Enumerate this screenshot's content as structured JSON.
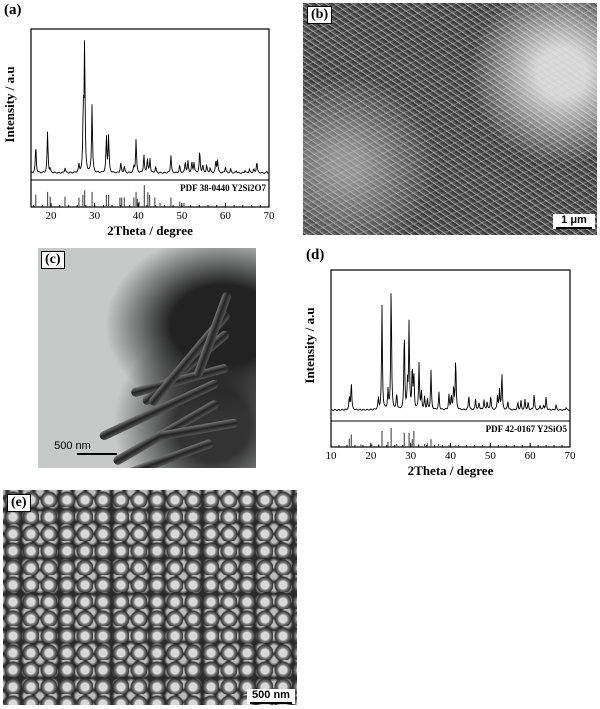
{
  "panels": {
    "a": {
      "label": "(a)"
    },
    "b": {
      "label": "(b)",
      "scale": "1 μm"
    },
    "c": {
      "label": "(c)",
      "scale": "500 nm"
    },
    "d": {
      "label": "(d)"
    },
    "e": {
      "label": "(e)",
      "scale": "500 nm"
    }
  },
  "chart_data": [
    {
      "panel": "a",
      "type": "line",
      "xlabel": "2Theta / degree",
      "ylabel": "Intensity / a.u",
      "xlim": [
        15.4,
        70
      ],
      "xticks": [
        20,
        30,
        40,
        50,
        60,
        70
      ],
      "reference_label": "PDF 38-0440  Y2Si2O7",
      "peaks": [
        [
          16.5,
          0.21
        ],
        [
          19.2,
          0.32
        ],
        [
          19.8,
          0.03
        ],
        [
          23.2,
          0.04
        ],
        [
          26.4,
          0.06
        ],
        [
          27.4,
          0.47
        ],
        [
          27.7,
          1.0
        ],
        [
          29.4,
          0.53
        ],
        [
          32.7,
          0.28
        ],
        [
          33.2,
          0.29
        ],
        [
          36.0,
          0.08
        ],
        [
          36.8,
          0.05
        ],
        [
          39.0,
          0.05
        ],
        [
          39.5,
          0.26
        ],
        [
          41.3,
          0.14
        ],
        [
          42.1,
          0.11
        ],
        [
          42.7,
          0.11
        ],
        [
          44.0,
          0.05
        ],
        [
          47.5,
          0.14
        ],
        [
          49.5,
          0.06
        ],
        [
          50.8,
          0.09
        ],
        [
          51.4,
          0.09
        ],
        [
          52.3,
          0.08
        ],
        [
          52.8,
          0.08
        ],
        [
          54.1,
          0.17
        ],
        [
          54.8,
          0.06
        ],
        [
          55.7,
          0.06
        ],
        [
          56.5,
          0.04
        ],
        [
          57.8,
          0.09
        ],
        [
          58.2,
          0.1
        ],
        [
          60.0,
          0.05
        ],
        [
          61.2,
          0.03
        ],
        [
          62.5,
          0.02
        ],
        [
          64.5,
          0.02
        ],
        [
          65.5,
          0.03
        ],
        [
          66.5,
          0.03
        ],
        [
          67.2,
          0.09
        ],
        [
          69.5,
          0.01
        ]
      ],
      "reference": [
        [
          16.5,
          0.46
        ],
        [
          19.2,
          0.56
        ],
        [
          19.8,
          0.38
        ],
        [
          23.2,
          0.38
        ],
        [
          26.4,
          0.35
        ],
        [
          27.3,
          0.45
        ],
        [
          27.7,
          0.62
        ],
        [
          29.4,
          0.56
        ],
        [
          32.7,
          0.45
        ],
        [
          33.2,
          0.45
        ],
        [
          35.8,
          0.35
        ],
        [
          36.2,
          0.35
        ],
        [
          36.8,
          0.35
        ],
        [
          39.0,
          0.35
        ],
        [
          39.5,
          0.56
        ],
        [
          39.8,
          0.3
        ],
        [
          40.2,
          0.2
        ],
        [
          41.4,
          0.81
        ],
        [
          42.2,
          0.55
        ],
        [
          42.6,
          0.45
        ],
        [
          43.8,
          0.35
        ],
        [
          45.0,
          0.15
        ],
        [
          47.5,
          0.35
        ],
        [
          49.5,
          0.2
        ],
        [
          50.5,
          0.15
        ]
      ]
    },
    {
      "panel": "d",
      "type": "line",
      "xlabel": "2Theta / degree",
      "ylabel": "Intensity / a.u",
      "xlim": [
        10,
        70
      ],
      "xticks": [
        10,
        20,
        30,
        40,
        50,
        60,
        70
      ],
      "reference_label": "PDF 42-0167  Y2SiO5",
      "peaks": [
        [
          14.6,
          0.1
        ],
        [
          15.1,
          0.23
        ],
        [
          21.9,
          0.09
        ],
        [
          22.8,
          0.82
        ],
        [
          24.3,
          0.15
        ],
        [
          25.1,
          1.0
        ],
        [
          26.5,
          0.13
        ],
        [
          28.4,
          0.64
        ],
        [
          29.2,
          0.2
        ],
        [
          29.6,
          0.69
        ],
        [
          30.4,
          0.34
        ],
        [
          30.8,
          0.27
        ],
        [
          32.1,
          0.37
        ],
        [
          32.7,
          0.14
        ],
        [
          33.5,
          0.1
        ],
        [
          34.2,
          0.08
        ],
        [
          35.1,
          0.31
        ],
        [
          37.1,
          0.14
        ],
        [
          39.6,
          0.12
        ],
        [
          40.2,
          0.12
        ],
        [
          40.8,
          0.18
        ],
        [
          41.3,
          0.41
        ],
        [
          44.6,
          0.12
        ],
        [
          46.3,
          0.09
        ],
        [
          47.2,
          0.06
        ],
        [
          48.4,
          0.08
        ],
        [
          49.2,
          0.07
        ],
        [
          50.1,
          0.12
        ],
        [
          51.8,
          0.11
        ],
        [
          52.3,
          0.15
        ],
        [
          52.9,
          0.29
        ],
        [
          54.4,
          0.07
        ],
        [
          56.9,
          0.06
        ],
        [
          57.7,
          0.07
        ],
        [
          58.7,
          0.08
        ],
        [
          59.5,
          0.06
        ],
        [
          61.0,
          0.13
        ],
        [
          62.5,
          0.04
        ],
        [
          63.4,
          0.04
        ],
        [
          64.0,
          0.1
        ],
        [
          66.5,
          0.04
        ],
        [
          69.0,
          0.02
        ]
      ],
      "reference": [
        [
          14.6,
          0.32
        ],
        [
          15.1,
          0.48
        ],
        [
          17.5,
          0.1
        ],
        [
          20.2,
          0.1
        ],
        [
          21.9,
          0.1
        ],
        [
          22.8,
          0.62
        ],
        [
          24.3,
          0.2
        ],
        [
          25.1,
          0.73
        ],
        [
          26.5,
          0.12
        ],
        [
          28.4,
          0.55
        ],
        [
          29.6,
          0.55
        ],
        [
          30.4,
          0.3
        ],
        [
          30.8,
          0.62
        ],
        [
          32.0,
          0.1
        ],
        [
          33.5,
          0.12
        ],
        [
          34.2,
          0.15
        ],
        [
          35.1,
          0.3
        ],
        [
          37.0,
          0.12
        ],
        [
          39.6,
          0.08
        ],
        [
          41.3,
          0.08
        ],
        [
          45,
          0.04
        ],
        [
          48,
          0.04
        ],
        [
          52,
          0.04
        ],
        [
          55,
          0.03
        ],
        [
          59,
          0.04
        ],
        [
          61,
          0.04
        ],
        [
          64,
          0.03
        ],
        [
          68,
          0.03
        ]
      ]
    }
  ]
}
